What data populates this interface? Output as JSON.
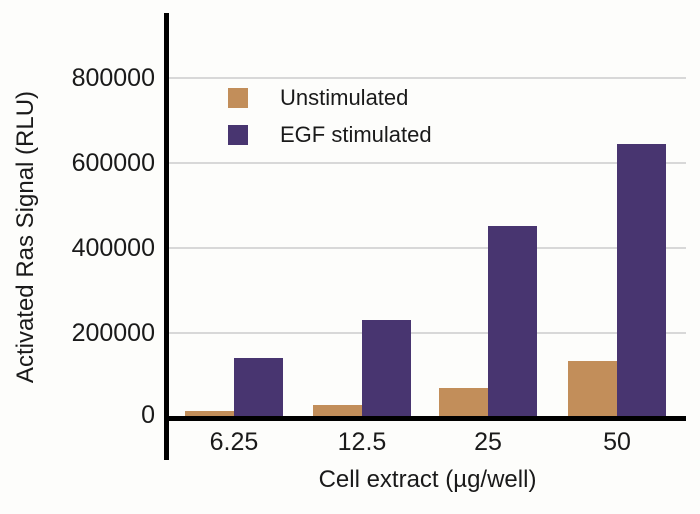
{
  "chart_data": {
    "type": "bar",
    "title": "",
    "xlabel": "Cell extract (µg/well)",
    "ylabel": "Activated Ras Signal (RLU)",
    "categories": [
      "6.25",
      "12.5",
      "25",
      "50"
    ],
    "series": [
      {
        "name": "Unstimulated",
        "color": "#C28E5A",
        "values": [
          16000,
          30000,
          70000,
          133000
        ]
      },
      {
        "name": "EGF stimulated",
        "color": "#483570",
        "values": [
          141000,
          231000,
          452000,
          645000
        ]
      }
    ],
    "yticks": [
      0,
      200000,
      400000,
      600000,
      800000
    ],
    "ylim": [
      0,
      950000
    ],
    "grid": "horizontal",
    "gridline_color": "#D8D8D8",
    "axis_color": "#000000",
    "text_color": "#1A1A1A",
    "background_color": "#FDFDFB",
    "legend_position": "top-left-inside"
  }
}
